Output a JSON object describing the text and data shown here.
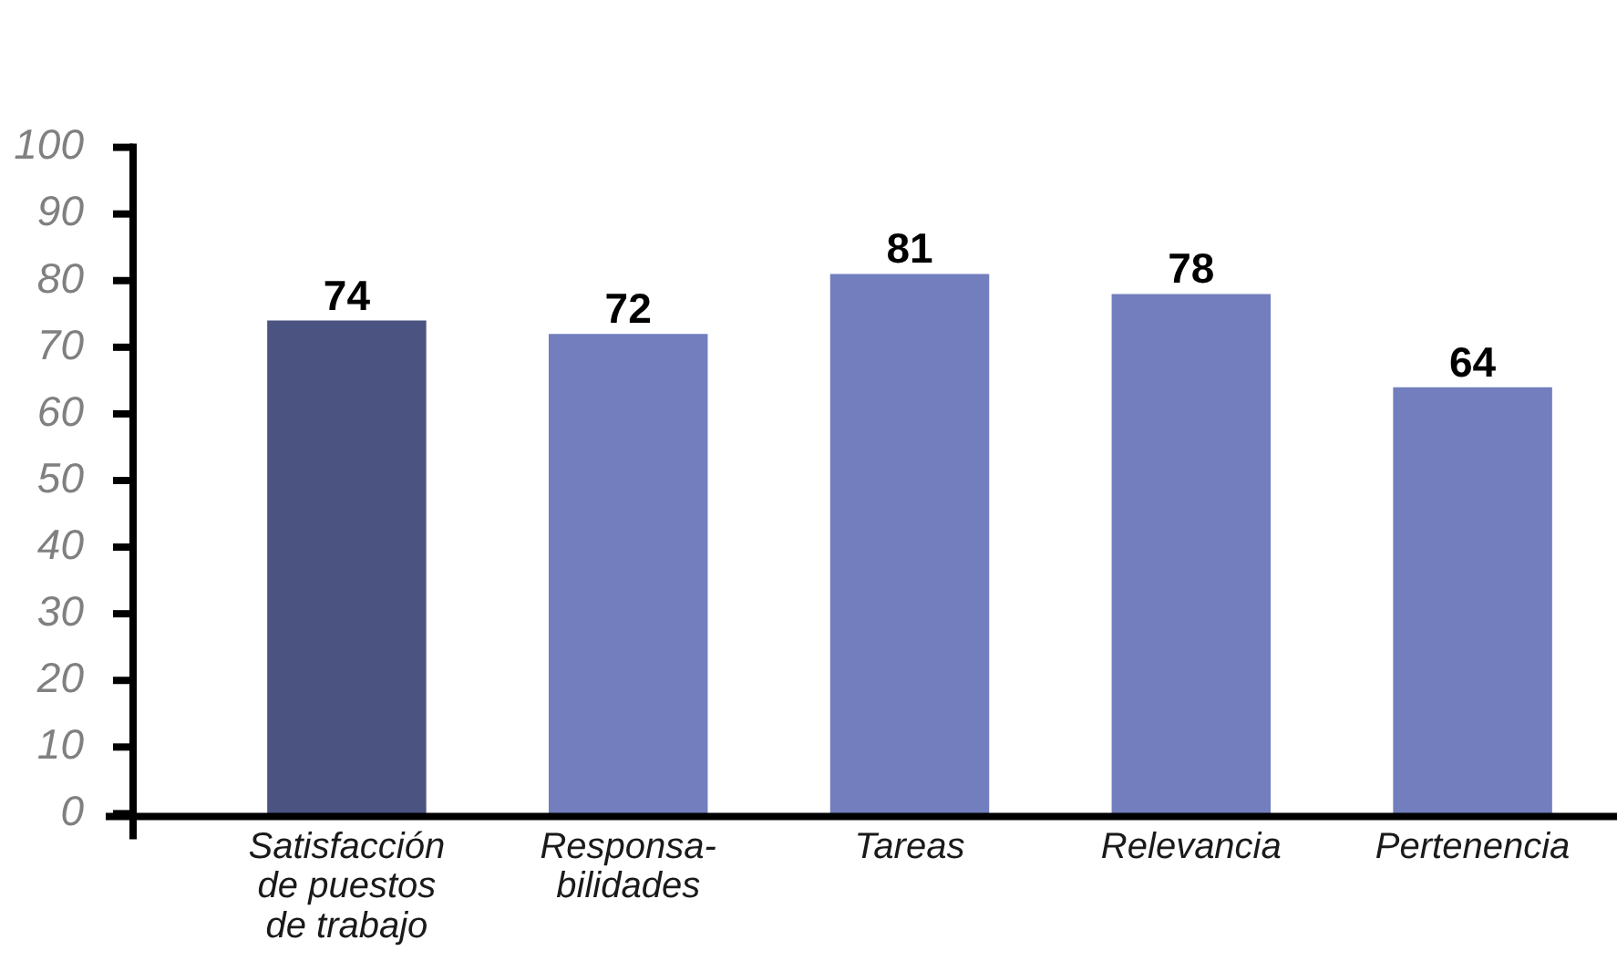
{
  "chart_data": {
    "type": "bar",
    "categories": [
      "Satisfacción\nde puestos\nde trabajo",
      "Responsa-\nbilidades",
      "Tareas",
      "Relevancia",
      "Pertenencia"
    ],
    "values": [
      74,
      72,
      81,
      78,
      64
    ],
    "colors": [
      "#4b5380",
      "#727ebd",
      "#727ebd",
      "#727ebd",
      "#727ebd"
    ],
    "ylim": [
      0,
      100
    ],
    "yticks": [
      0,
      10,
      20,
      30,
      40,
      50,
      60,
      70,
      80,
      90,
      100
    ],
    "data_labels": true,
    "grid": false
  }
}
